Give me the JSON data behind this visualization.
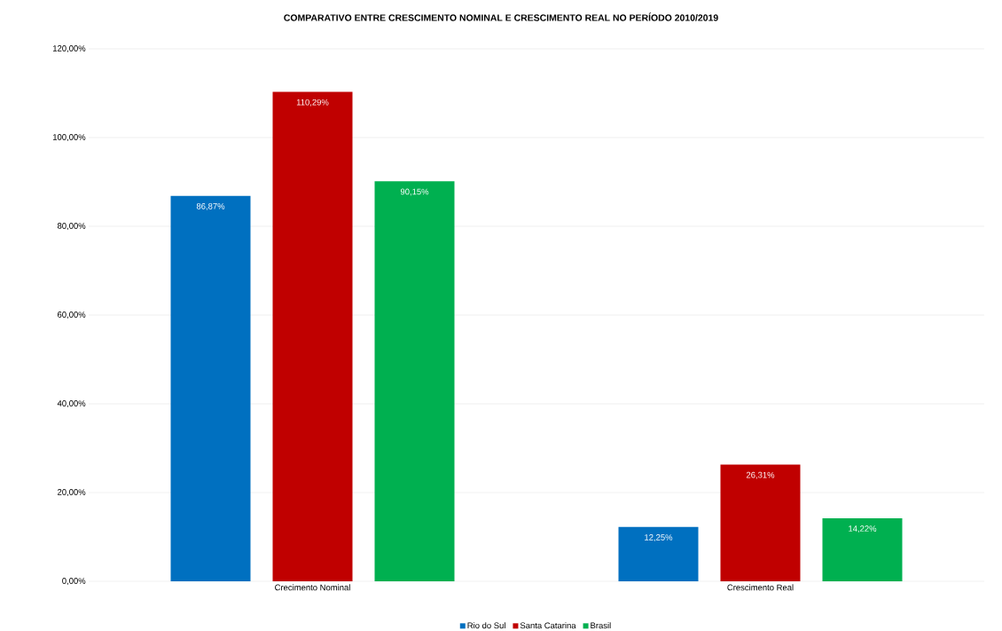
{
  "chart_data": {
    "type": "bar",
    "title": "COMPARATIVO ENTRE CRESCIMENTO NOMINAL E CRESCIMENTO REAL NO PERÍODO 2010/2019",
    "categories": [
      "Crecimento Nominal",
      "Crescimento Real"
    ],
    "series": [
      {
        "name": "Rio do Sul",
        "color": "#0070c0",
        "values": [
          86.87,
          12.25
        ],
        "value_labels": [
          "86,87%",
          "12,25%"
        ]
      },
      {
        "name": "Santa Catarina",
        "color": "#c00000",
        "values": [
          110.29,
          26.31
        ],
        "value_labels": [
          "110,29%",
          "26,31%"
        ]
      },
      {
        "name": "Brasil",
        "color": "#00b050",
        "values": [
          90.15,
          14.22
        ],
        "value_labels": [
          "90,15%",
          "14,22%"
        ]
      }
    ],
    "ylim": [
      0,
      120
    ],
    "yticks": [
      {
        "value": 0,
        "label": "0,00%"
      },
      {
        "value": 20,
        "label": "20,00%"
      },
      {
        "value": 40,
        "label": "40,00%"
      },
      {
        "value": 60,
        "label": "60,00%"
      },
      {
        "value": 80,
        "label": "80,00%"
      },
      {
        "value": 100,
        "label": "100,00%"
      },
      {
        "value": 120,
        "label": "120,00%"
      }
    ],
    "grid": "y",
    "legend": "bottom"
  }
}
